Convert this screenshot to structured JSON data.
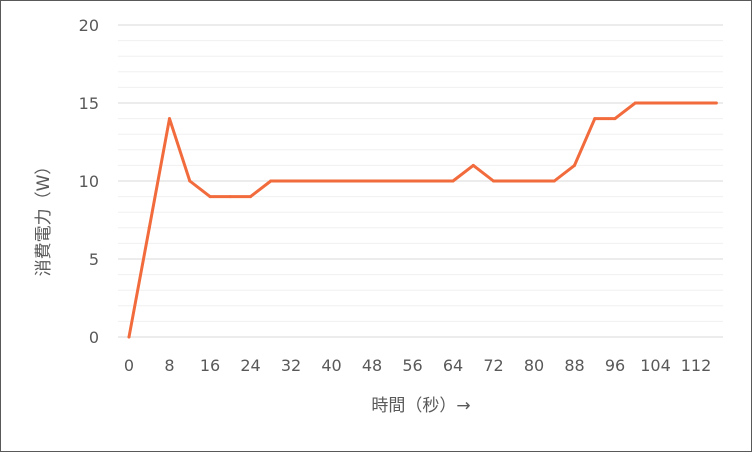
{
  "chart_data": {
    "type": "line",
    "title": "",
    "xlabel": "時間（秒）→",
    "ylabel": "消費電力（W）",
    "xlim": [
      0,
      116
    ],
    "ylim": [
      0,
      20
    ],
    "x_ticks": [
      "0",
      "8",
      "16",
      "24",
      "32",
      "40",
      "48",
      "56",
      "64",
      "72",
      "80",
      "88",
      "96",
      "104",
      "112"
    ],
    "y_ticks": [
      "0",
      "5",
      "10",
      "15",
      "20"
    ],
    "grid": true,
    "legend": "none",
    "series_color": "#f26b3d",
    "x": [
      0,
      4,
      8,
      12,
      16,
      20,
      24,
      28,
      32,
      36,
      40,
      44,
      48,
      52,
      56,
      60,
      64,
      68,
      72,
      76,
      80,
      84,
      88,
      92,
      96,
      100,
      104,
      108,
      112,
      116
    ],
    "values": [
      0,
      7,
      14,
      10,
      9,
      9,
      9,
      10,
      10,
      10,
      10,
      10,
      10,
      10,
      10,
      10,
      10,
      11,
      10,
      10,
      10,
      10,
      11,
      14,
      14,
      15,
      15,
      15,
      15,
      15
    ]
  }
}
